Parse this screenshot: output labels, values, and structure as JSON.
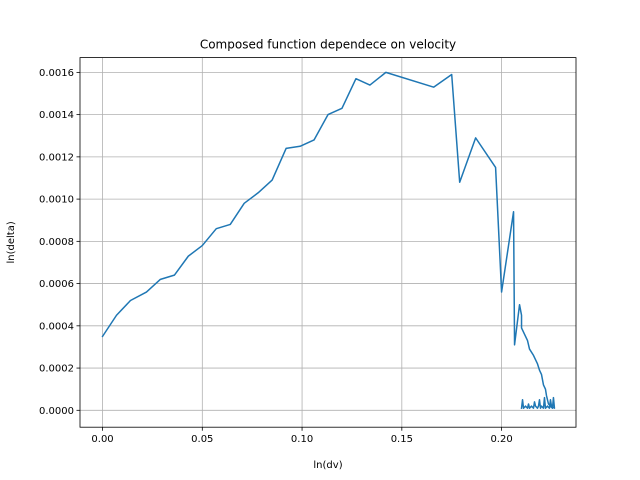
{
  "chart_data": {
    "type": "line",
    "title": "Composed function dependece on velocity",
    "xlabel": "ln(dv)",
    "ylabel": "ln(delta)",
    "xlim": [
      -0.0113,
      0.2373
    ],
    "ylim": [
      -8e-05,
      0.00167
    ],
    "grid": true,
    "x_ticks": [
      0.0,
      0.05,
      0.1,
      0.15,
      0.2
    ],
    "x_tick_labels": [
      "0.00",
      "0.05",
      "0.10",
      "0.15",
      "0.20"
    ],
    "y_ticks": [
      0.0,
      0.0002,
      0.0004,
      0.0006,
      0.0008,
      0.001,
      0.0012,
      0.0014,
      0.0016
    ],
    "y_tick_labels": [
      "0.0000",
      "0.0002",
      "0.0004",
      "0.0006",
      "0.0008",
      "0.0010",
      "0.0012",
      "0.0014",
      "0.0016"
    ],
    "series": [
      {
        "color": "#1f77b4",
        "x": [
          0.0,
          0.007,
          0.014,
          0.022,
          0.029,
          0.036,
          0.043,
          0.05,
          0.057,
          0.064,
          0.071,
          0.078,
          0.085,
          0.092,
          0.099,
          0.106,
          0.113,
          0.12,
          0.127,
          0.134,
          0.142,
          0.166,
          0.175,
          0.179,
          0.187,
          0.197,
          0.2,
          0.206,
          0.2065,
          0.209,
          0.21,
          0.21,
          0.213,
          0.214,
          0.216,
          0.218,
          0.219,
          0.22,
          0.221,
          0.222,
          0.2225,
          0.2235,
          0.2245,
          0.2255,
          0.226,
          0.2265,
          0.225,
          0.2245,
          0.224,
          0.223,
          0.222,
          0.2215,
          0.221,
          0.22,
          0.2195,
          0.219,
          0.2185,
          0.218,
          0.217,
          0.2165,
          0.216,
          0.215,
          0.214,
          0.2135,
          0.213,
          0.212,
          0.211,
          0.2105,
          0.21
        ],
        "y": [
          0.00035,
          0.00045,
          0.00052,
          0.00056,
          0.00062,
          0.00064,
          0.00073,
          0.00078,
          0.00086,
          0.00088,
          0.00098,
          0.00103,
          0.00109,
          0.00124,
          0.00125,
          0.00128,
          0.0014,
          0.00143,
          0.00157,
          0.00154,
          0.0016,
          0.00153,
          0.00159,
          0.00108,
          0.00129,
          0.00115,
          0.00056,
          0.00094,
          0.00031,
          0.0005,
          0.00045,
          0.00039,
          0.00033,
          0.00029,
          0.00026,
          0.00022,
          0.00019,
          0.00017,
          0.00012,
          0.0001,
          7e-05,
          3e-05,
          2e-05,
          1e-05,
          6e-05,
          1e-05,
          2e-05,
          5e-05,
          1e-05,
          2e-05,
          1e-05,
          6e-05,
          1e-05,
          2e-05,
          1e-05,
          5e-05,
          2e-05,
          1e-05,
          2e-05,
          4e-05,
          1e-05,
          2e-05,
          1e-05,
          3e-05,
          1e-05,
          2e-05,
          1e-05,
          5e-05,
          1e-05
        ]
      }
    ]
  }
}
